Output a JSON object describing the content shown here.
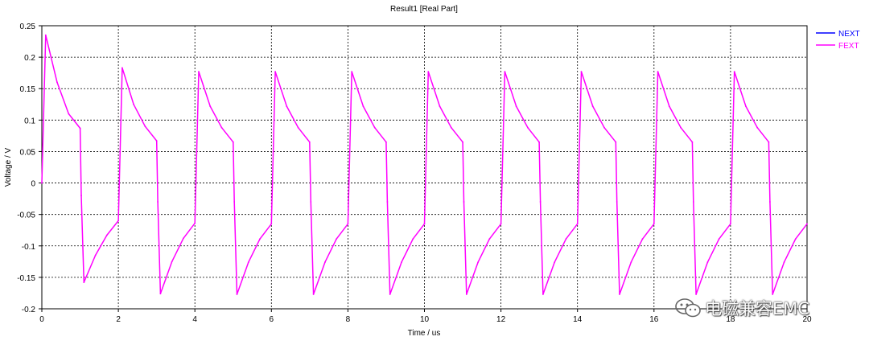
{
  "chart_data": {
    "type": "line",
    "title": "Result1 [Real Part]",
    "xlabel": "Time / us",
    "ylabel": "Voltage / V",
    "xlim": [
      0,
      20
    ],
    "ylim": [
      -0.2,
      0.25
    ],
    "xticks": [
      0,
      2,
      4,
      6,
      8,
      10,
      12,
      14,
      16,
      18,
      20
    ],
    "xtick_labels": [
      "0",
      "2",
      "4",
      "6",
      "8",
      "10",
      "12",
      "14",
      "16",
      "18",
      "20"
    ],
    "yticks": [
      -0.2,
      -0.15,
      -0.1,
      -0.05,
      0,
      0.05,
      0.1,
      0.15,
      0.2,
      0.25
    ],
    "ytick_labels": [
      "-0.2",
      "-0.15",
      "-0.1",
      "-0.05",
      "0",
      "0.05",
      "0.1",
      "0.15",
      "0.2",
      "0.25"
    ],
    "grid": true,
    "legend_position": "top-right",
    "series": [
      {
        "name": "NEXT",
        "color": "#0000ff",
        "x": [],
        "y": []
      },
      {
        "name": "FEXT",
        "color": "#ff00ff",
        "x": [
          0,
          0.1,
          0.4,
          0.7,
          1.0,
          1.03,
          1.1,
          1.4,
          1.7,
          2.0,
          2.1,
          2.4,
          2.7,
          3.0,
          3.03,
          3.1,
          3.4,
          3.7,
          4.0,
          4.1,
          4.4,
          4.7,
          5.0,
          5.03,
          5.1,
          5.4,
          5.7,
          6.0,
          6.1,
          6.4,
          6.7,
          7.0,
          7.03,
          7.1,
          7.4,
          7.7,
          8.0,
          8.1,
          8.4,
          8.7,
          9.0,
          9.03,
          9.1,
          9.4,
          9.7,
          10.0,
          10.1,
          10.4,
          10.7,
          11.0,
          11.03,
          11.1,
          11.4,
          11.7,
          12.0,
          12.1,
          12.4,
          12.7,
          13.0,
          13.03,
          13.1,
          13.4,
          13.7,
          14.0,
          14.1,
          14.4,
          14.7,
          15.0,
          15.03,
          15.1,
          15.4,
          15.7,
          16.0,
          16.1,
          16.4,
          16.7,
          17.0,
          17.03,
          17.1,
          17.4,
          17.7,
          18.0,
          18.1,
          18.4,
          18.7,
          19.0,
          19.03,
          19.1,
          19.4,
          19.7,
          20.0
        ],
        "y": [
          0.0,
          0.235,
          0.16,
          0.11,
          0.087,
          -0.02,
          -0.158,
          -0.115,
          -0.083,
          -0.06,
          0.183,
          0.125,
          0.09,
          0.067,
          -0.03,
          -0.176,
          -0.125,
          -0.088,
          -0.064,
          0.177,
          0.122,
          0.088,
          0.065,
          -0.03,
          -0.177,
          -0.126,
          -0.089,
          -0.065,
          0.177,
          0.122,
          0.088,
          0.065,
          -0.03,
          -0.177,
          -0.126,
          -0.089,
          -0.065,
          0.177,
          0.122,
          0.088,
          0.065,
          -0.03,
          -0.177,
          -0.126,
          -0.089,
          -0.065,
          0.177,
          0.122,
          0.088,
          0.065,
          -0.03,
          -0.177,
          -0.126,
          -0.089,
          -0.065,
          0.177,
          0.122,
          0.088,
          0.065,
          -0.03,
          -0.177,
          -0.126,
          -0.089,
          -0.065,
          0.177,
          0.122,
          0.088,
          0.065,
          -0.03,
          -0.177,
          -0.126,
          -0.089,
          -0.065,
          0.177,
          0.122,
          0.088,
          0.065,
          -0.03,
          -0.177,
          -0.126,
          -0.089,
          -0.065,
          0.177,
          0.122,
          0.088,
          0.065,
          -0.03,
          -0.177,
          -0.126,
          -0.089,
          -0.065
        ]
      }
    ]
  },
  "watermark": {
    "text": "电磁兼容EMC",
    "icon": "wechat-icon"
  }
}
